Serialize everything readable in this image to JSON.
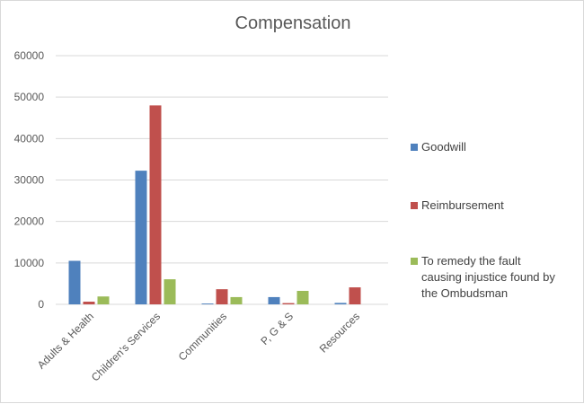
{
  "chart_data": {
    "type": "bar",
    "title": "Compensation",
    "categories": [
      "Adults & Health",
      "Children's Services",
      "Communities",
      "P, G & S",
      "Resources"
    ],
    "series": [
      {
        "name": "Goodwill",
        "color": "#4f81bd",
        "values": [
          10500,
          32250,
          200,
          1750,
          350
        ]
      },
      {
        "name": "Reimbursement",
        "color": "#c0504d",
        "values": [
          650,
          48000,
          3650,
          300,
          4100
        ]
      },
      {
        "name": "To remedy the fault causing injustice found by the Ombudsman",
        "color": "#9bbb59",
        "values": [
          1900,
          6050,
          1750,
          3250,
          0
        ]
      }
    ],
    "ylim": [
      0,
      60000
    ],
    "yticks": [
      "0",
      "10000",
      "20000",
      "30000",
      "40000",
      "50000",
      "60000"
    ],
    "grid": true,
    "legend": "right"
  }
}
